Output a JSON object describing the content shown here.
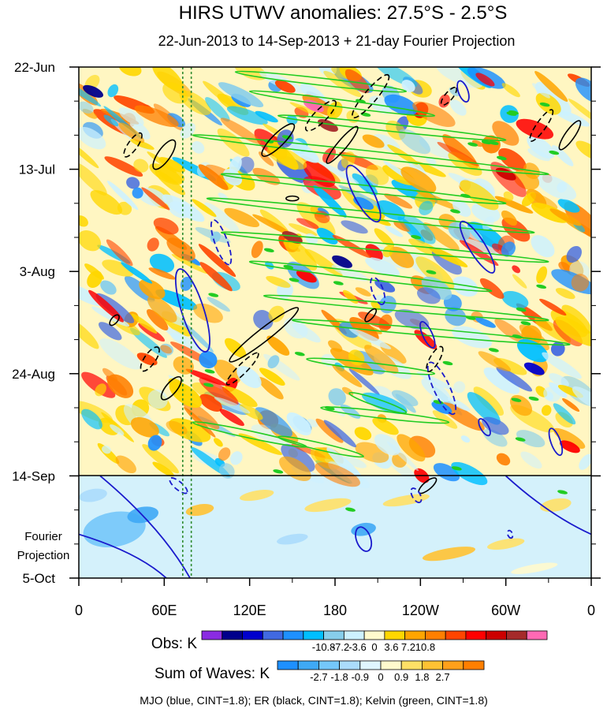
{
  "chart_data": {
    "type": "heatmap",
    "title": "HIRS UTWV anomalies: 27.5°S - 2.5°S",
    "subtitle": "22-Jun-2013 to 14-Sep-2013 + 21-day Fourier Projection",
    "y_ticks": [
      "22-Jun",
      "13-Jul",
      "3-Aug",
      "24-Aug",
      "14-Sep",
      "5-Oct"
    ],
    "projection_label": [
      "Fourier",
      "Projection"
    ],
    "x_ticks": [
      "0",
      "60E",
      "120E",
      "180",
      "120W",
      "60W",
      "0"
    ],
    "x_range_deg": [
      0,
      360
    ],
    "y_range_days": [
      0,
      105
    ],
    "obs_split_day": 84,
    "obs_legend": {
      "label": "Obs: K",
      "levels": [
        "-10.8",
        "-7.2",
        "-3.6",
        "0",
        "3.6",
        "7.2",
        "10.8"
      ],
      "colors": [
        "#8a2be2",
        "#00008b",
        "#0000cd",
        "#4169e1",
        "#1e90ff",
        "#00bfff",
        "#87ceeb",
        "#cdf1ff",
        "#fffacd",
        "#ffd700",
        "#ffa500",
        "#ff7f00",
        "#ff4500",
        "#ff0000",
        "#cc0000",
        "#a52a2a",
        "#ff69b4"
      ]
    },
    "waves_legend": {
      "label": "Sum of Waves: K",
      "levels": [
        "-2.7",
        "-1.8",
        "-0.9",
        "0",
        "0.9",
        "1.8",
        "2.7"
      ],
      "colors": [
        "#1e90ff",
        "#3fa9f5",
        "#74c7fa",
        "#abdcfc",
        "#e0f6ff",
        "#fffacd",
        "#ffe066",
        "#ffc233",
        "#ffa01a",
        "#ff7f00"
      ]
    },
    "footer": "MJO (blue, CINT=1.8); ER (black, CINT=1.8); Kelvin (green, CINT=1.8)",
    "reference_lines_deg": [
      73,
      79
    ],
    "contour_colors": {
      "mjo": "#1a1acc",
      "er": "#000000",
      "kelvin": "#22cc22",
      "reference": "#2e8b2e"
    }
  }
}
